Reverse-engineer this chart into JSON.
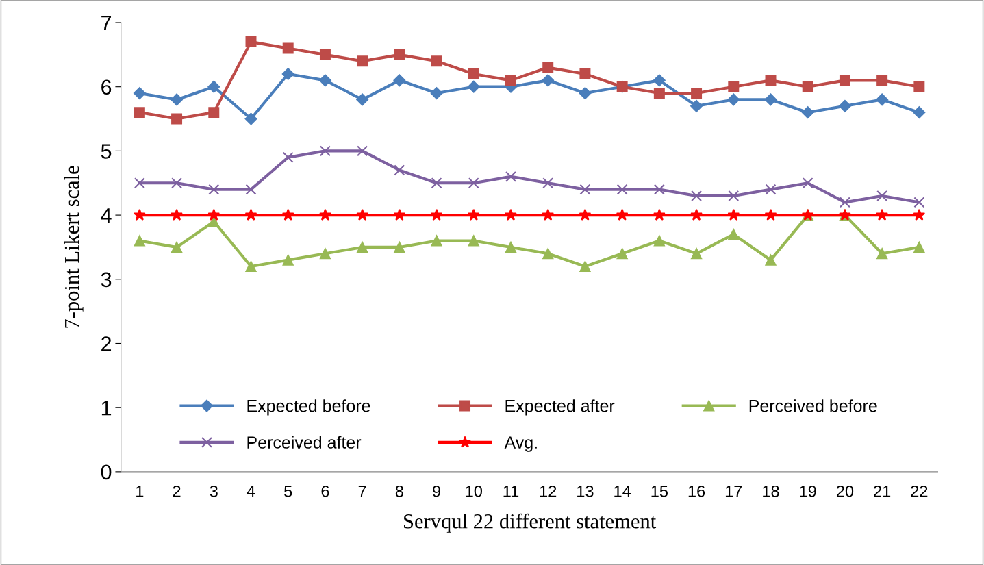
{
  "chart_data": {
    "type": "line",
    "xlabel": "Servqul 22 different statement",
    "ylabel": "7-point Likert scale",
    "categories": [
      "1",
      "2",
      "3",
      "4",
      "5",
      "6",
      "7",
      "8",
      "9",
      "10",
      "11",
      "12",
      "13",
      "14",
      "15",
      "16",
      "17",
      "18",
      "19",
      "20",
      "21",
      "22"
    ],
    "ylim": [
      0,
      7
    ],
    "yticks": [
      0,
      1,
      2,
      3,
      4,
      5,
      6,
      7
    ],
    "grid": false,
    "legend": "bottom",
    "series": [
      {
        "name": "Expected before",
        "color": "#4a7ebb",
        "marker": "diamond",
        "values": [
          5.9,
          5.8,
          6.0,
          5.5,
          6.2,
          6.1,
          5.8,
          6.1,
          5.9,
          6.0,
          6.0,
          6.1,
          5.9,
          6.0,
          6.1,
          5.7,
          5.8,
          5.8,
          5.6,
          5.7,
          5.8,
          5.6
        ]
      },
      {
        "name": "Expected after",
        "color": "#be4b48",
        "marker": "square",
        "values": [
          5.6,
          5.5,
          5.6,
          6.7,
          6.6,
          6.5,
          6.4,
          6.5,
          6.4,
          6.2,
          6.1,
          6.3,
          6.2,
          6.0,
          5.9,
          5.9,
          6.0,
          6.1,
          6.0,
          6.1,
          6.1,
          6.0
        ]
      },
      {
        "name": "Perceived before",
        "color": "#98b954",
        "marker": "triangle",
        "values": [
          3.6,
          3.5,
          3.9,
          3.2,
          3.3,
          3.4,
          3.5,
          3.5,
          3.6,
          3.6,
          3.5,
          3.4,
          3.2,
          3.4,
          3.6,
          3.4,
          3.7,
          3.3,
          4.0,
          4.0,
          3.4,
          3.5
        ]
      },
      {
        "name": "Perceived after",
        "color": "#7d60a0",
        "marker": "cross",
        "values": [
          4.5,
          4.5,
          4.4,
          4.4,
          4.9,
          5.0,
          5.0,
          4.7,
          4.5,
          4.5,
          4.6,
          4.5,
          4.4,
          4.4,
          4.4,
          4.3,
          4.3,
          4.4,
          4.5,
          4.2,
          4.3,
          4.2
        ]
      },
      {
        "name": "Avg.",
        "color": "#ff0000",
        "marker": "star",
        "values": [
          4,
          4,
          4,
          4,
          4,
          4,
          4,
          4,
          4,
          4,
          4,
          4,
          4,
          4,
          4,
          4,
          4,
          4,
          4,
          4,
          4,
          4
        ]
      }
    ]
  }
}
